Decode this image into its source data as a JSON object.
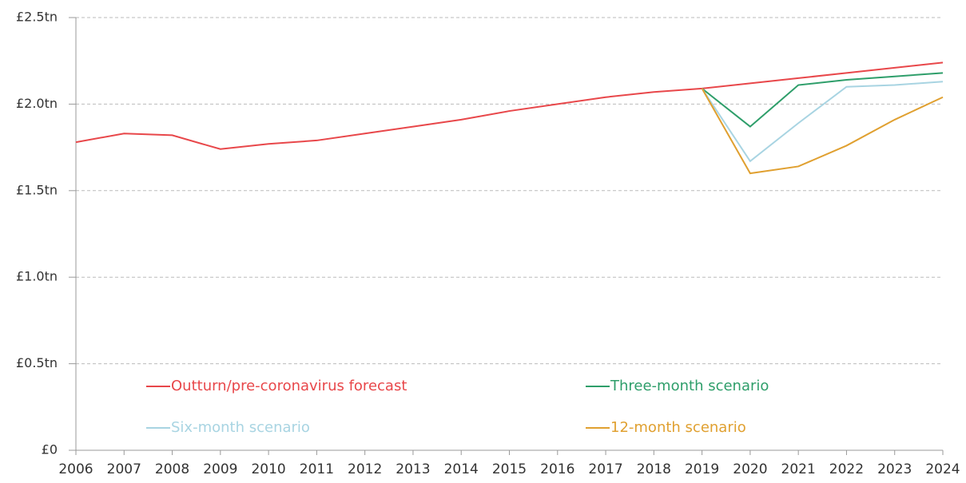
{
  "chart_data": {
    "type": "line",
    "x": [
      2006,
      2007,
      2008,
      2009,
      2010,
      2011,
      2012,
      2013,
      2014,
      2015,
      2016,
      2017,
      2018,
      2019,
      2020,
      2021,
      2022,
      2023,
      2024
    ],
    "xlim": [
      2006,
      2024
    ],
    "xticks": [
      2006,
      2007,
      2008,
      2009,
      2010,
      2011,
      2012,
      2013,
      2014,
      2015,
      2016,
      2017,
      2018,
      2019,
      2020,
      2021,
      2022,
      2023,
      2024
    ],
    "ylim": [
      0,
      2.5
    ],
    "yticks": [
      {
        "value": 0,
        "label": "£0"
      },
      {
        "value": 0.5,
        "label": "£0.5tn"
      },
      {
        "value": 1.0,
        "label": "£1.0tn"
      },
      {
        "value": 1.5,
        "label": "£1.5tn"
      },
      {
        "value": 2.0,
        "label": "£2.0tn"
      },
      {
        "value": 2.5,
        "label": "£2.5tn"
      }
    ],
    "grid": true,
    "legend": "bottom",
    "series": [
      {
        "name": "Outturn/pre-coronavirus forecast",
        "color": "#e8474a",
        "values": [
          1.78,
          1.83,
          1.82,
          1.74,
          1.77,
          1.79,
          1.83,
          1.87,
          1.91,
          1.96,
          2.0,
          2.04,
          2.07,
          2.09,
          2.12,
          2.15,
          2.18,
          2.21,
          2.24
        ]
      },
      {
        "name": "Three-month scenario",
        "color": "#2e9e6a",
        "values": [
          null,
          null,
          null,
          null,
          null,
          null,
          null,
          null,
          null,
          null,
          null,
          null,
          null,
          2.09,
          1.87,
          2.11,
          2.14,
          2.16,
          2.18
        ]
      },
      {
        "name": "Six-month scenario",
        "color": "#a8d4e2",
        "values": [
          null,
          null,
          null,
          null,
          null,
          null,
          null,
          null,
          null,
          null,
          null,
          null,
          null,
          2.09,
          1.67,
          1.89,
          2.1,
          2.11,
          2.13
        ]
      },
      {
        "name": "12-month scenario",
        "color": "#e0a030",
        "values": [
          null,
          null,
          null,
          null,
          null,
          null,
          null,
          null,
          null,
          null,
          null,
          null,
          null,
          2.09,
          1.6,
          1.64,
          1.76,
          1.91,
          2.04
        ]
      }
    ]
  }
}
